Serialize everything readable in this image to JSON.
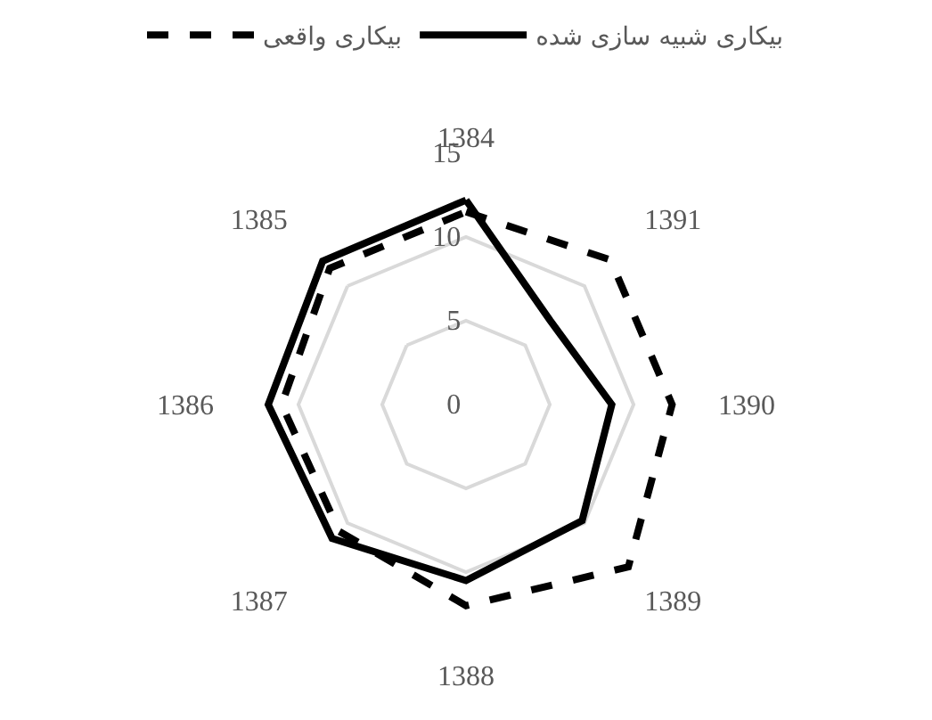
{
  "chart_data": {
    "type": "radar",
    "categories": [
      "1384",
      "1391",
      "1390",
      "1389",
      "1388",
      "1387",
      "1386",
      "1385"
    ],
    "series": [
      {
        "name": "بیکاری واقعی",
        "color": "#000000",
        "line_style": "dashed",
        "values": [
          11.5,
          12.2,
          12.3,
          13.7,
          12.0,
          10.7,
          11.0,
          11.5
        ]
      },
      {
        "name": "بیکاری شبیه سازی شده",
        "color": "#000000",
        "line_style": "solid",
        "values": [
          12.2,
          7.1,
          8.7,
          9.8,
          10.5,
          11.3,
          11.8,
          12.1
        ]
      }
    ],
    "ylim": [
      0,
      15
    ],
    "yticks": [
      0,
      5,
      10,
      15
    ],
    "grid": "y",
    "legend": "top",
    "marker": "none"
  }
}
